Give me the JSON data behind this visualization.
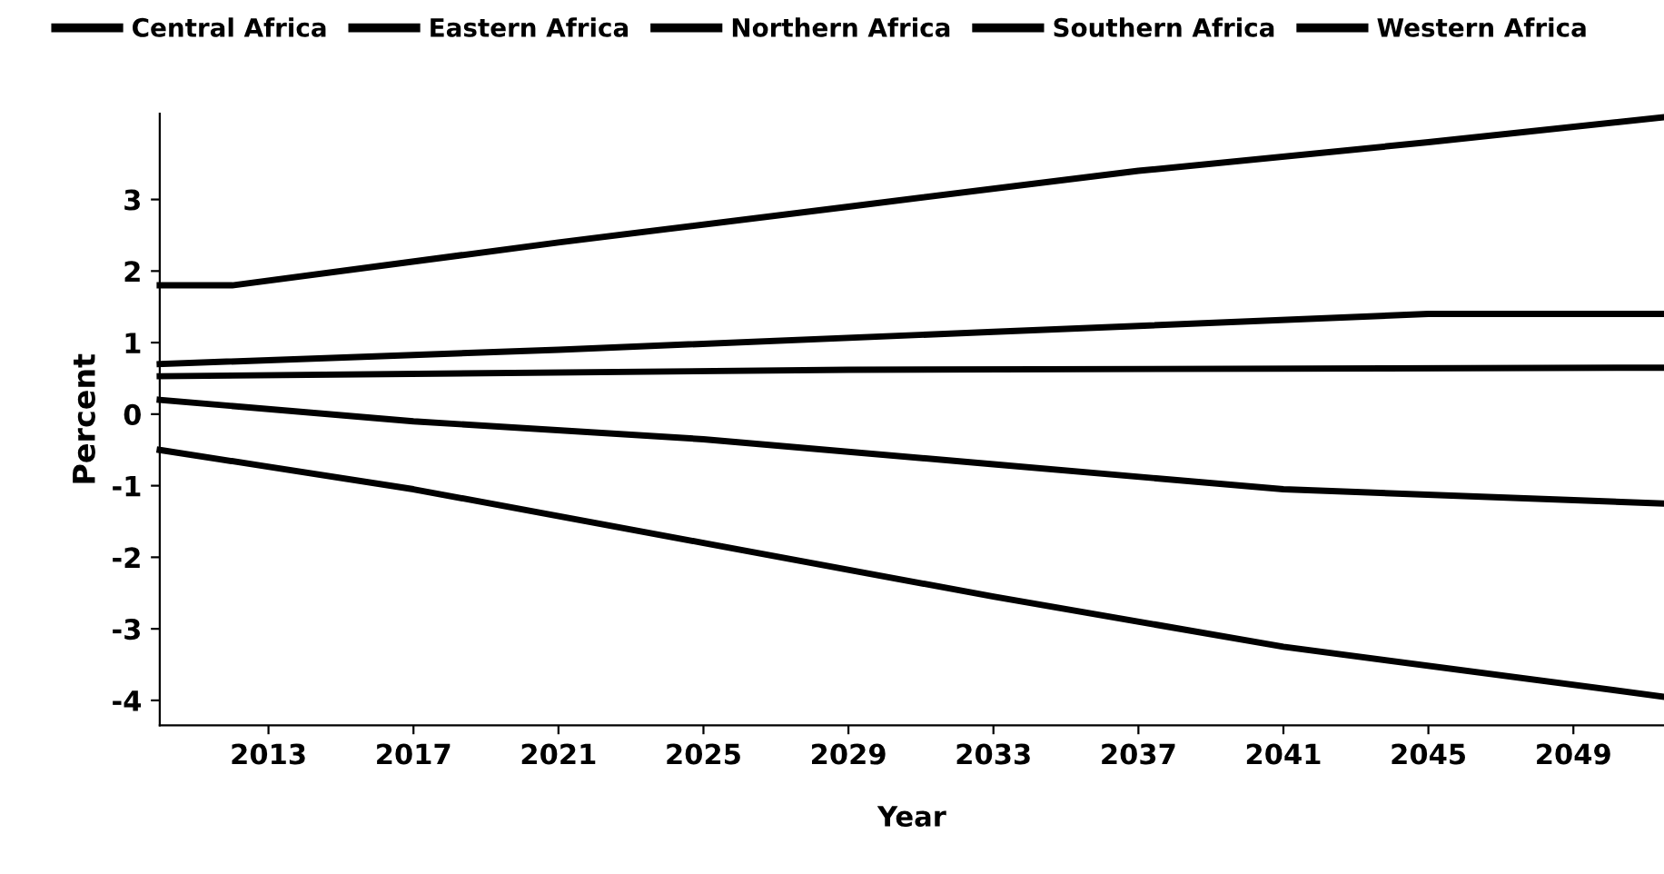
{
  "chart_data": {
    "type": "line",
    "xlabel": "Year",
    "ylabel": "Percent",
    "xlim": [
      2010,
      2051.5
    ],
    "ylim": [
      -4.35,
      4.2
    ],
    "xticks": [
      2013,
      2017,
      2021,
      2025,
      2029,
      2033,
      2037,
      2041,
      2045,
      2049
    ],
    "yticks": [
      -4,
      -3,
      -2,
      -1,
      0,
      1,
      2,
      3
    ],
    "grid": false,
    "legend": "top",
    "marker": "none",
    "line_style": "solid",
    "series": [
      {
        "name": "Central Africa",
        "color": "#000000",
        "x": [
          2010,
          2012,
          2021,
          2029,
          2037,
          2045,
          2051.5
        ],
        "values": [
          1.8,
          1.8,
          2.4,
          2.9,
          3.4,
          3.8,
          4.15
        ]
      },
      {
        "name": "Eastern Africa",
        "color": "#000000",
        "x": [
          2010,
          2021,
          2033,
          2045,
          2051.5
        ],
        "values": [
          0.7,
          0.9,
          1.15,
          1.4,
          1.4
        ]
      },
      {
        "name": "Northern Africa",
        "color": "#000000",
        "x": [
          2010,
          2029,
          2051.5
        ],
        "values": [
          0.53,
          0.62,
          0.65
        ]
      },
      {
        "name": "Southern Africa",
        "color": "#000000",
        "x": [
          2010,
          2017,
          2025,
          2033,
          2041,
          2051.5
        ],
        "values": [
          0.2,
          -0.1,
          -0.35,
          -0.7,
          -1.05,
          -1.25
        ]
      },
      {
        "name": "Western Africa",
        "color": "#000000",
        "x": [
          2010,
          2017,
          2025,
          2033,
          2041,
          2051.5
        ],
        "values": [
          -0.5,
          -1.05,
          -1.8,
          -2.55,
          -3.25,
          -3.95
        ]
      }
    ]
  }
}
